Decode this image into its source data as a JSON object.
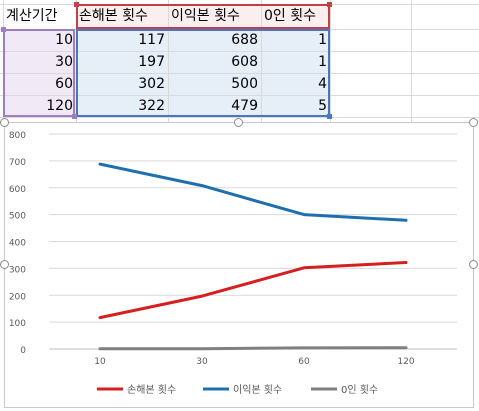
{
  "sheet": {
    "headers": [
      "계산기간",
      "손해본 횟수",
      "이익본 횟수",
      "0인 횟수"
    ],
    "rows": [
      [
        "10",
        "117",
        "688",
        "1"
      ],
      [
        "30",
        "197",
        "608",
        "1"
      ],
      [
        "60",
        "302",
        "500",
        "4"
      ],
      [
        "120",
        "322",
        "479",
        "5"
      ]
    ]
  },
  "chart_data": {
    "type": "line",
    "categories": [
      "10",
      "30",
      "60",
      "120"
    ],
    "series": [
      {
        "name": "손해본 횟수",
        "values": [
          117,
          197,
          302,
          322
        ],
        "color": "#d42020"
      },
      {
        "name": "이익본 횟수",
        "values": [
          688,
          608,
          500,
          479
        ],
        "color": "#1f6fae"
      },
      {
        "name": "0인 횟수",
        "values": [
          1,
          1,
          4,
          5
        ],
        "color": "#7f7f7f"
      }
    ],
    "y_ticks": [
      "0",
      "100",
      "200",
      "300",
      "400",
      "500",
      "600",
      "700",
      "800"
    ],
    "ylim": [
      0,
      800
    ],
    "grid": true,
    "legend": "bottom",
    "title": "",
    "xlabel": "",
    "ylabel": ""
  }
}
